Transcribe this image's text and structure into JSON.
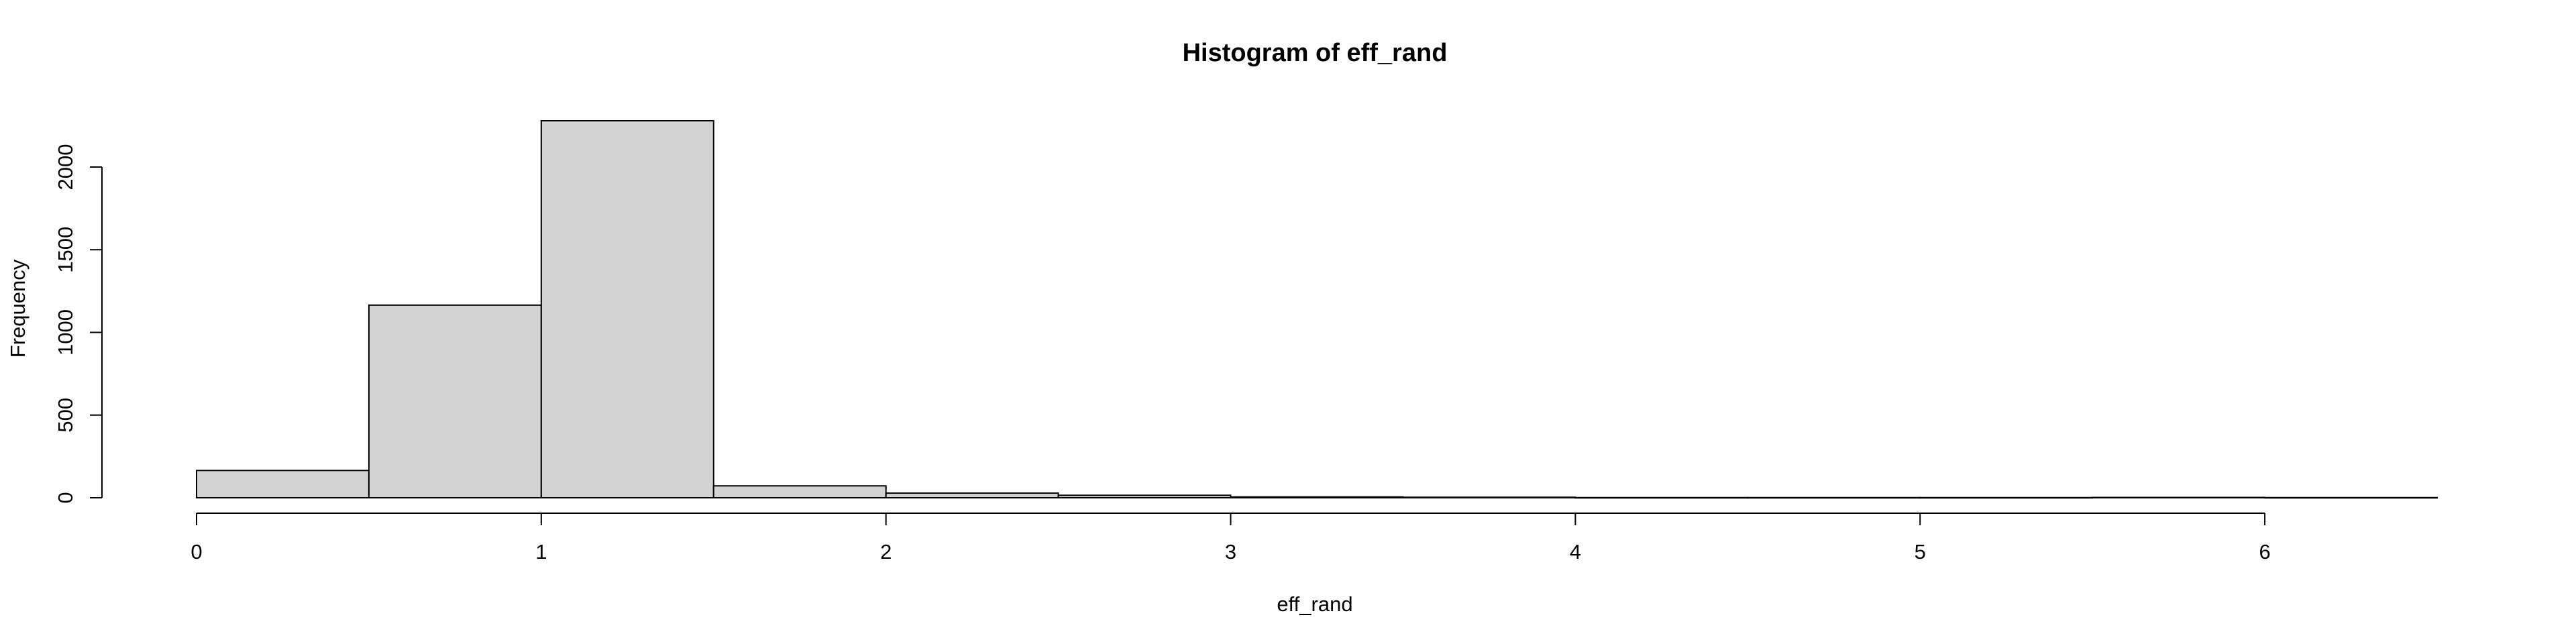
{
  "chart_data": {
    "type": "bar",
    "title": "Histogram of eff_rand",
    "xlabel": "eff_rand",
    "ylabel": "Frequency",
    "bins": [
      {
        "start": 0.0,
        "end": 0.5,
        "count": 165
      },
      {
        "start": 0.5,
        "end": 1.0,
        "count": 1165
      },
      {
        "start": 1.0,
        "end": 1.5,
        "count": 2280
      },
      {
        "start": 1.5,
        "end": 2.0,
        "count": 72
      },
      {
        "start": 2.0,
        "end": 2.5,
        "count": 28
      },
      {
        "start": 2.5,
        "end": 3.0,
        "count": 15
      },
      {
        "start": 3.0,
        "end": 3.5,
        "count": 5
      },
      {
        "start": 3.5,
        "end": 4.0,
        "count": 3
      },
      {
        "start": 4.0,
        "end": 4.5,
        "count": 1
      },
      {
        "start": 4.5,
        "end": 5.0,
        "count": 1
      },
      {
        "start": 5.0,
        "end": 5.5,
        "count": 1
      },
      {
        "start": 5.5,
        "end": 6.0,
        "count": 2
      },
      {
        "start": 6.0,
        "end": 6.5,
        "count": 1
      }
    ],
    "xlim": [
      0,
      6.5
    ],
    "ylim": [
      0,
      2280
    ],
    "x_ticks": [
      0,
      1,
      2,
      3,
      4,
      5,
      6
    ],
    "y_ticks": [
      0,
      500,
      1000,
      1500,
      2000
    ],
    "bar_fill": "#d3d3d3",
    "bar_stroke": "#000000",
    "grid": false
  }
}
